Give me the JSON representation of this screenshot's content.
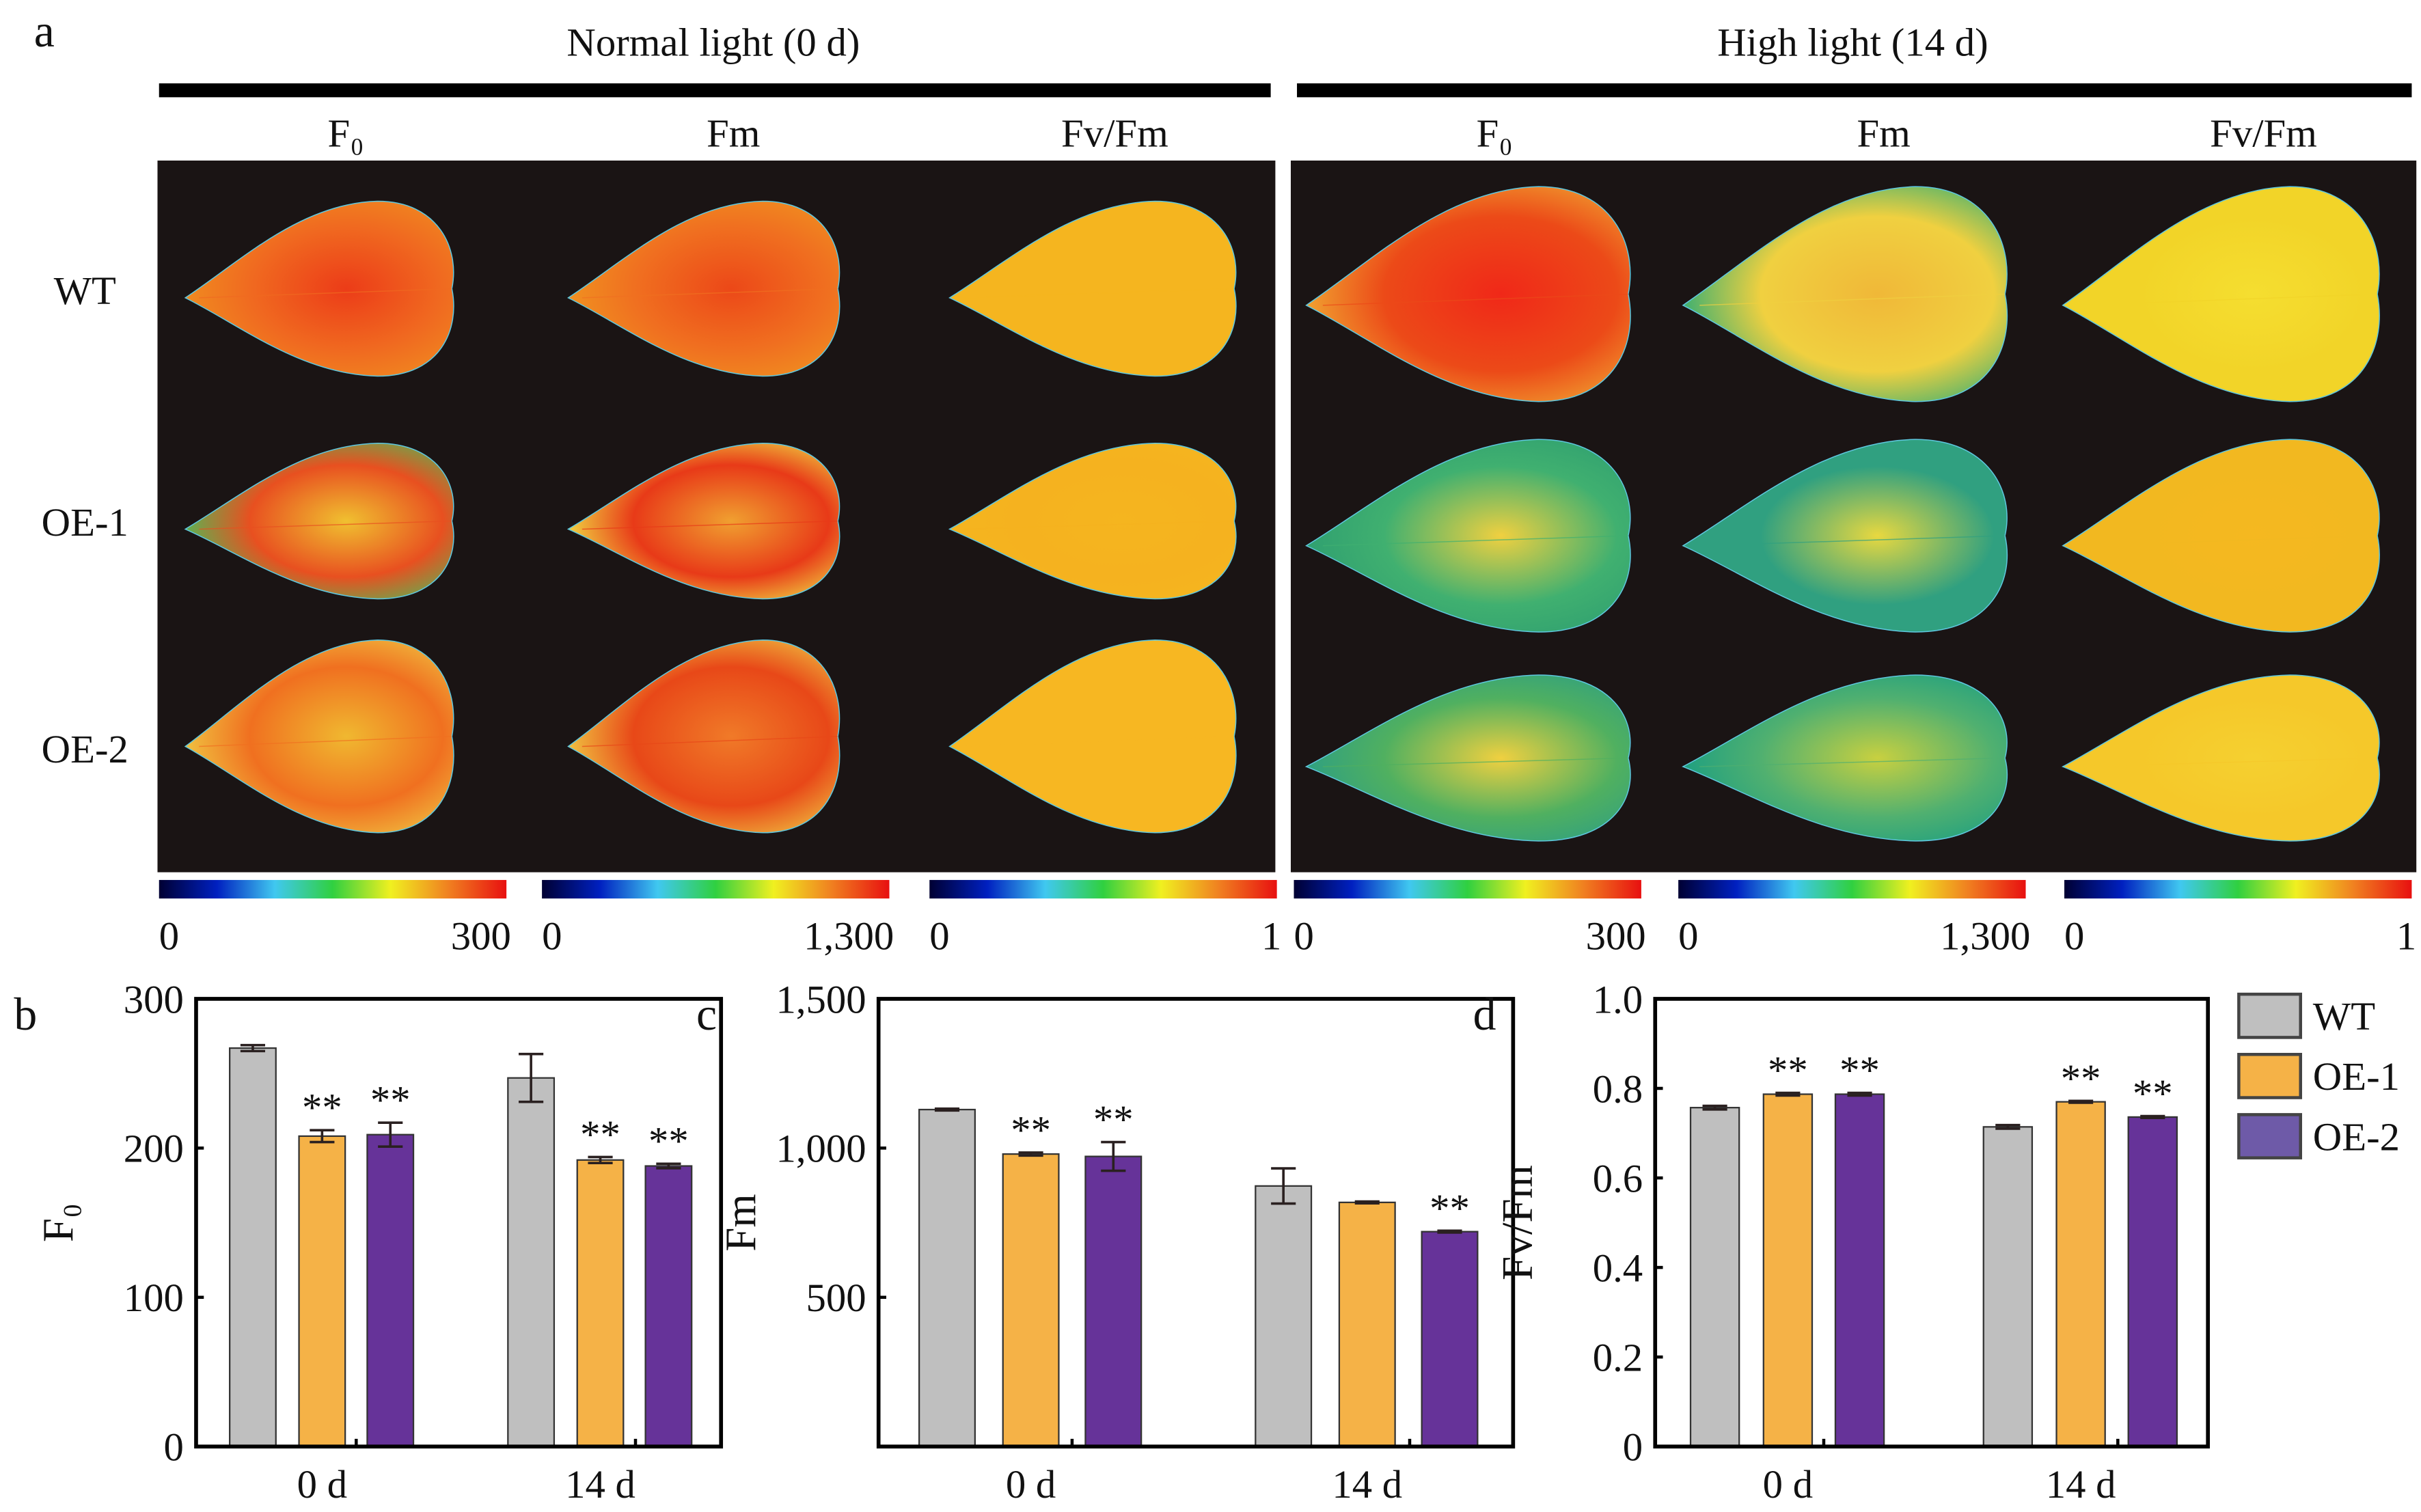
{
  "panel_a": {
    "label": "a",
    "conditions": [
      {
        "title": "Normal light (0 d)",
        "columns": [
          "F₀",
          "Fm",
          "Fv/Fm"
        ]
      },
      {
        "title": "High light (14 d)",
        "columns": [
          "F₀",
          "Fm",
          "Fv/Fm"
        ]
      }
    ],
    "rows": [
      "WT",
      "OE-1",
      "OE-2"
    ],
    "colorbars": [
      {
        "min": "0",
        "max": "300"
      },
      {
        "min": "0",
        "max": "1,300"
      },
      {
        "min": "0",
        "max": "1"
      },
      {
        "min": "0",
        "max": "300"
      },
      {
        "min": "0",
        "max": "1,300"
      },
      {
        "min": "0",
        "max": "1"
      }
    ],
    "colorbar_colors": [
      "#000033",
      "#0020c0",
      "#40c8f0",
      "#30d040",
      "#f0f020",
      "#f08020",
      "#e81010"
    ],
    "image_background": "#1a1414",
    "leaf_colors": [
      [
        [
          "#f06a20",
          "#ec3c18",
          "#f08a20"
        ],
        [
          "#f07020",
          "#ec4818",
          "#f09020"
        ],
        [
          "#f5b51f",
          "#f5b51f",
          "#f5b51f"
        ],
        [
          "#ec4a18",
          "#f02818",
          "#f0a030"
        ],
        [
          "#f0d040",
          "#f0b838",
          "#40b070"
        ],
        [
          "#f2d428",
          "#f5de30",
          "#f2d428"
        ]
      ],
      [
        [
          "#e85020",
          "#f0c030",
          "#60b050"
        ],
        [
          "#e83a18",
          "#f0a030",
          "#f0d040"
        ],
        [
          "#f5b21f",
          "#f5b51f",
          "#f5b51f"
        ],
        [
          "#40b070",
          "#f0d040",
          "#30a070"
        ],
        [
          "#30a080",
          "#e8d840",
          "#30a080"
        ],
        [
          "#f2b820",
          "#f5b820",
          "#f2b820"
        ]
      ],
      [
        [
          "#f07020",
          "#f0b830",
          "#f0c040"
        ],
        [
          "#e84818",
          "#f07a28",
          "#f0c040"
        ],
        [
          "#f7b722",
          "#f7b722",
          "#f7b722"
        ],
        [
          "#50b060",
          "#f0d040",
          "#30a080"
        ],
        [
          "#50b070",
          "#c8d040",
          "#20a080"
        ],
        [
          "#f5c82a",
          "#f5d030",
          "#f5c82a"
        ]
      ]
    ]
  },
  "legend": [
    {
      "name": "WT",
      "color": "#bfbfbf"
    },
    {
      "name": "OE-1",
      "color": "#f5b247"
    },
    {
      "name": "OE-2",
      "color": "#663399"
    }
  ],
  "chart_data": [
    {
      "panel": "b",
      "type": "bar",
      "ylabel": "F₀",
      "ylim": [
        0,
        300
      ],
      "yticks": [
        {
          "value": 0,
          "label": "0"
        },
        {
          "value": 100,
          "label": "100"
        },
        {
          "value": 200,
          "label": "200"
        },
        {
          "value": 300,
          "label": "300"
        }
      ],
      "categories": [
        "0 d",
        "14 d"
      ],
      "series": [
        {
          "name": "WT",
          "values": [
            267,
            247
          ],
          "errors": [
            2,
            16
          ],
          "significance": [
            "",
            ""
          ]
        },
        {
          "name": "OE-1",
          "values": [
            208,
            192
          ],
          "errors": [
            4,
            2
          ],
          "significance": [
            "**",
            "**"
          ]
        },
        {
          "name": "OE-2",
          "values": [
            209,
            188
          ],
          "errors": [
            8,
            1.5
          ],
          "significance": [
            "**",
            "**"
          ]
        }
      ]
    },
    {
      "panel": "c",
      "type": "bar",
      "ylabel": "Fm",
      "ylim": [
        0,
        1500
      ],
      "yticks": [
        {
          "value": 500,
          "label": "500"
        },
        {
          "value": 1000,
          "label": "1,000"
        },
        {
          "value": 1500,
          "label": "1,500"
        }
      ],
      "categories": [
        "0 d",
        "14 d"
      ],
      "series": [
        {
          "name": "WT",
          "values": [
            1129,
            873
          ],
          "errors": [
            3,
            59
          ],
          "significance": [
            "",
            ""
          ]
        },
        {
          "name": "OE-1",
          "values": [
            980,
            818
          ],
          "errors": [
            5,
            3
          ],
          "significance": [
            "**",
            ""
          ]
        },
        {
          "name": "OE-2",
          "values": [
            972,
            720
          ],
          "errors": [
            48,
            3
          ],
          "significance": [
            "**",
            "**"
          ]
        }
      ]
    },
    {
      "panel": "d",
      "type": "bar",
      "ylabel": "Fv/Fm",
      "ylim": [
        0,
        1.0
      ],
      "yticks": [
        {
          "value": 0,
          "label": "0"
        },
        {
          "value": 0.2,
          "label": "0.2"
        },
        {
          "value": 0.4,
          "label": "0.4"
        },
        {
          "value": 0.6,
          "label": "0.6"
        },
        {
          "value": 0.8,
          "label": "0.8"
        },
        {
          "value": 1.0,
          "label": "1.0"
        }
      ],
      "categories": [
        "0 d",
        "14 d"
      ],
      "series": [
        {
          "name": "WT",
          "values": [
            0.757,
            0.714
          ],
          "errors": [
            0.004,
            0.004
          ],
          "significance": [
            "",
            ""
          ]
        },
        {
          "name": "OE-1",
          "values": [
            0.787,
            0.77
          ],
          "errors": [
            0.003,
            0.002
          ],
          "significance": [
            "**",
            "**"
          ]
        },
        {
          "name": "OE-2",
          "values": [
            0.787,
            0.736
          ],
          "errors": [
            0.003,
            0.002
          ],
          "significance": [
            "**",
            "**"
          ]
        }
      ]
    }
  ]
}
